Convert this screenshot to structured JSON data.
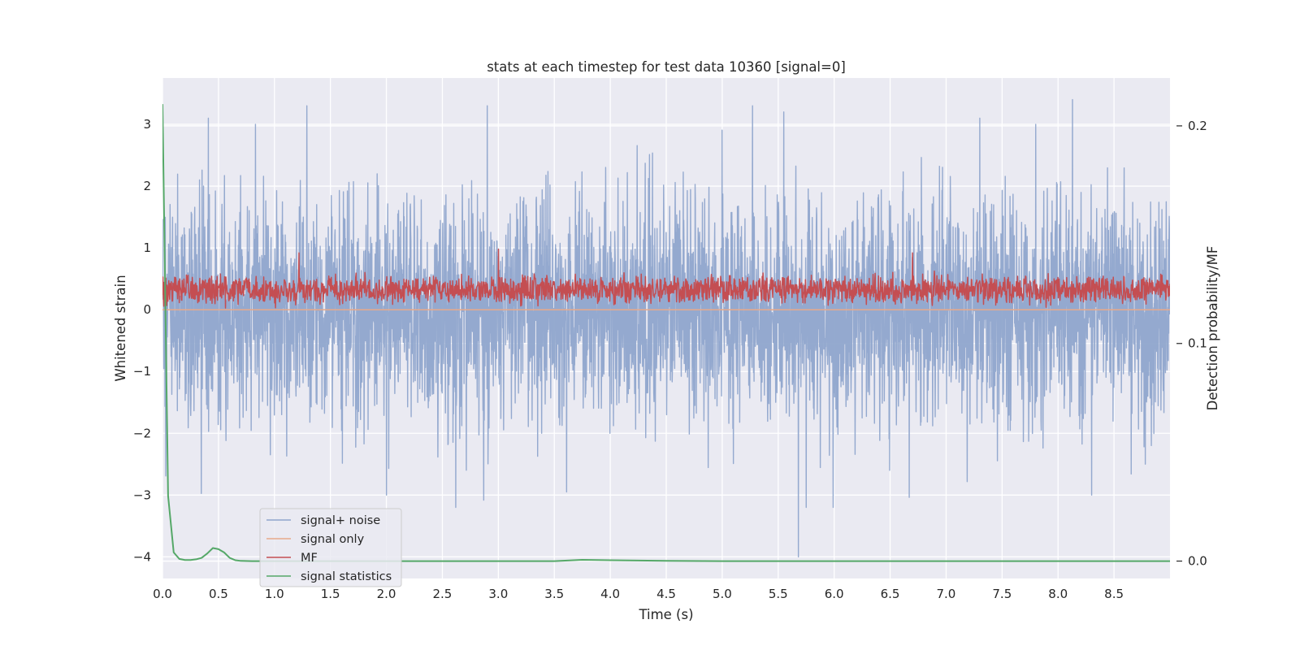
{
  "chart_data": {
    "type": "line",
    "title": "stats at each timestep for test data 10360 [signal=0]",
    "xlabel": "Time (s)",
    "ylabel": "Whitened strain",
    "y2label": "Detection probability/MF",
    "xlim": [
      0.0,
      9.0
    ],
    "ylim": [
      -4.35,
      3.75
    ],
    "y2lim": [
      -0.008,
      0.222
    ],
    "x_ticks": [
      "0.0",
      "0.5",
      "1.0",
      "1.5",
      "2.0",
      "2.5",
      "3.0",
      "3.5",
      "4.0",
      "4.5",
      "5.0",
      "5.5",
      "6.0",
      "6.5",
      "7.0",
      "7.5",
      "8.0",
      "8.5"
    ],
    "y_ticks": [
      "3",
      "2",
      "1",
      "0",
      "−1",
      "−2",
      "−3",
      "−4"
    ],
    "y2_ticks": [
      "0.2",
      "0.1",
      "0.0"
    ],
    "grid": true,
    "legend_position": "lower-left",
    "series": [
      {
        "name": "signal+ noise",
        "axis": "left",
        "color": "#8fa5cc",
        "noise_std": 0.9,
        "notable_peaks": [
          {
            "x": 0.41,
            "y": 3.1
          },
          {
            "x": 0.83,
            "y": 3.0
          },
          {
            "x": 1.29,
            "y": 3.3
          },
          {
            "x": 2.9,
            "y": 3.3
          },
          {
            "x": 5.27,
            "y": 3.3
          },
          {
            "x": 5.55,
            "y": 3.2
          },
          {
            "x": 7.3,
            "y": 3.1
          },
          {
            "x": 7.8,
            "y": 3.0
          },
          {
            "x": 8.13,
            "y": 3.4
          },
          {
            "x": 2.0,
            "y": -3.0
          },
          {
            "x": 2.62,
            "y": -3.2
          },
          {
            "x": 5.68,
            "y": -4.0
          },
          {
            "x": 5.75,
            "y": -3.2
          },
          {
            "x": 5.99,
            "y": -3.2
          },
          {
            "x": 8.3,
            "y": -3.0
          }
        ]
      },
      {
        "name": "signal only",
        "axis": "left",
        "color": "#e8a98a",
        "x": [
          0.0,
          9.0
        ],
        "y": [
          0.0,
          0.0
        ]
      },
      {
        "name": "MF",
        "axis": "left",
        "color": "#c44e52",
        "baseline": 0.27,
        "spread": 0.22,
        "notable_peaks": [
          {
            "x": 1.22,
            "y": 0.92
          },
          {
            "x": 3.0,
            "y": 0.98
          },
          {
            "x": 6.7,
            "y": 0.92
          }
        ]
      },
      {
        "name": "signal statistics",
        "axis": "right",
        "color": "#55a868",
        "x": [
          0.0,
          0.05,
          0.1,
          0.15,
          0.2,
          0.25,
          0.3,
          0.35,
          0.4,
          0.45,
          0.5,
          0.55,
          0.6,
          0.65,
          0.7,
          0.8,
          1.0,
          1.5,
          2.0,
          3.0,
          3.5,
          3.75,
          4.0,
          4.5,
          5.0,
          6.0,
          7.0,
          8.0,
          9.0
        ],
        "y": [
          0.21,
          0.03,
          0.004,
          0.001,
          0.0005,
          0.0005,
          0.0008,
          0.0015,
          0.0035,
          0.006,
          0.0055,
          0.004,
          0.0015,
          0.0004,
          0.0001,
          0.0,
          0.0,
          0.0,
          0.0,
          0.0,
          0.0,
          0.0006,
          0.0004,
          0.0001,
          0.0,
          0.0,
          0.0,
          0.0,
          0.0
        ]
      }
    ]
  }
}
